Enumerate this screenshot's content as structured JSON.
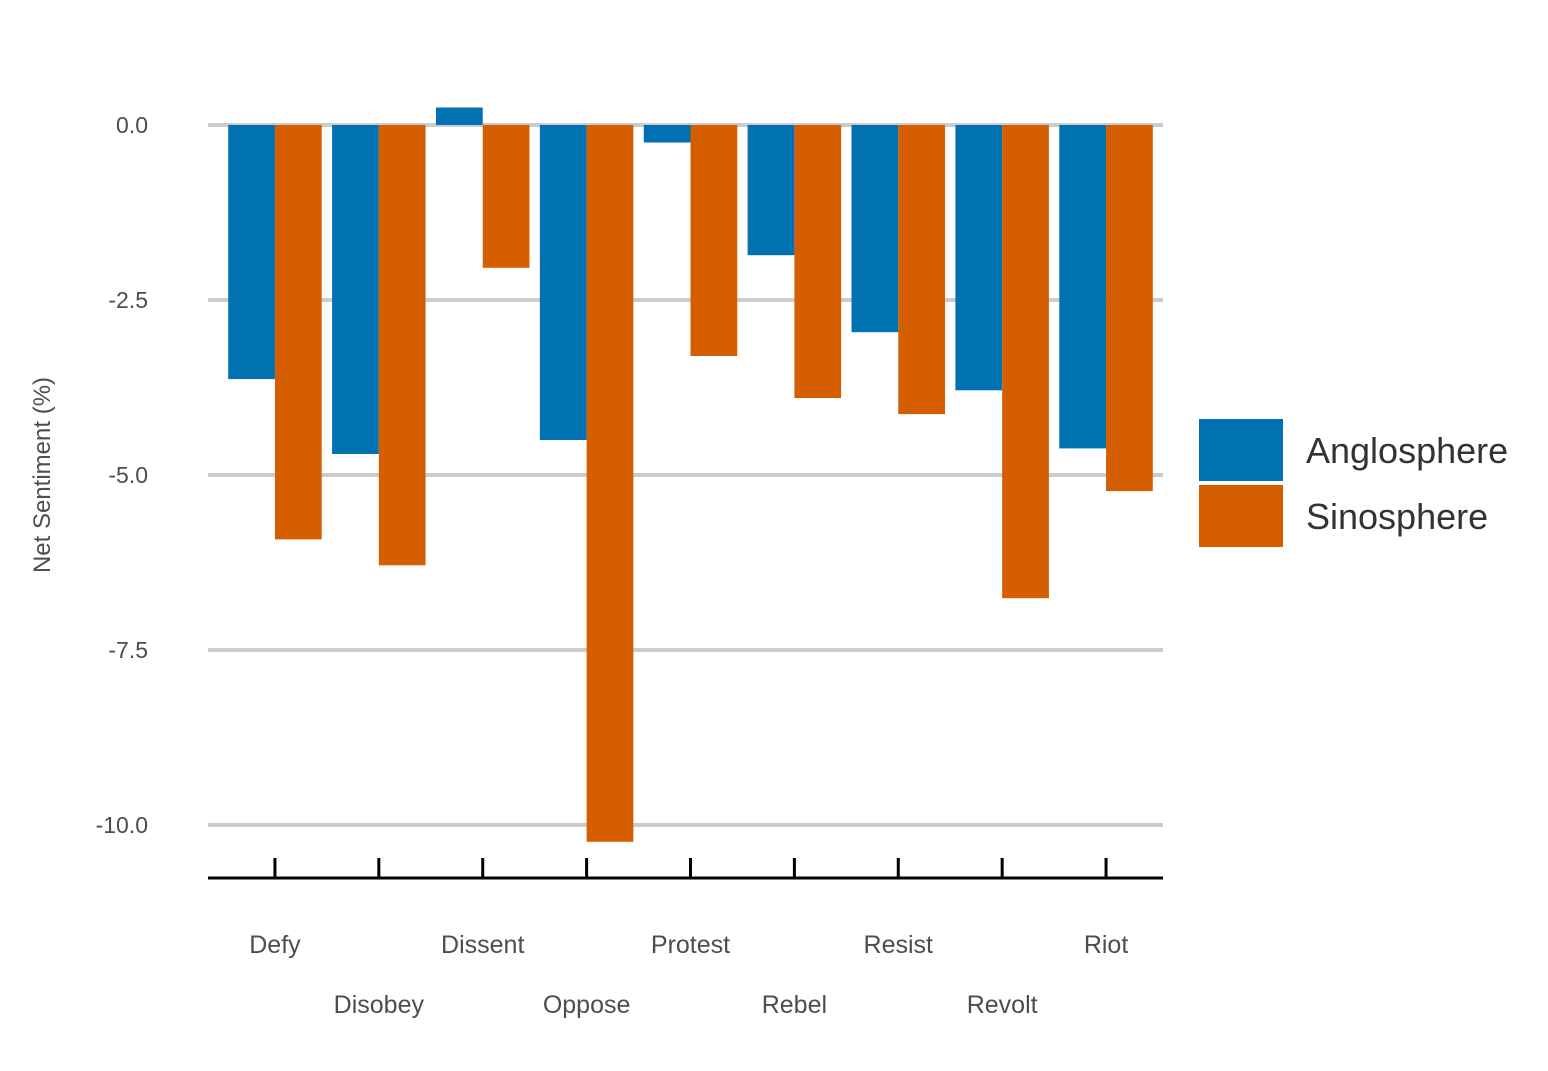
{
  "chart_data": {
    "type": "bar",
    "ylabel": "Net Sentiment (%)",
    "xlabel": "",
    "title": "",
    "categories": [
      "Defy",
      "Disobey",
      "Dissent",
      "Oppose",
      "Protest",
      "Rebel",
      "Resist",
      "Revolt",
      "Riot"
    ],
    "series": [
      {
        "name": "Anglosphere",
        "color": "#0072B2",
        "values": [
          -3.63,
          -4.7,
          0.25,
          -4.5,
          -0.25,
          -1.86,
          -2.96,
          -3.79,
          -4.62
        ]
      },
      {
        "name": "Sinosphere",
        "color": "#D55E00",
        "values": [
          -5.92,
          -6.29,
          -2.04,
          -10.24,
          -3.3,
          -3.9,
          -4.13,
          -6.76,
          -5.23
        ]
      }
    ],
    "ylim": [
      -10.75,
      0.6
    ],
    "yticks": [
      0.0,
      -2.5,
      -5.0,
      -7.5,
      -10.0
    ],
    "ytick_labels": [
      "0.0",
      "-2.5",
      "-5.0",
      "-7.5",
      "-10.0"
    ],
    "grid": "horizontal",
    "legend_position": "right"
  }
}
